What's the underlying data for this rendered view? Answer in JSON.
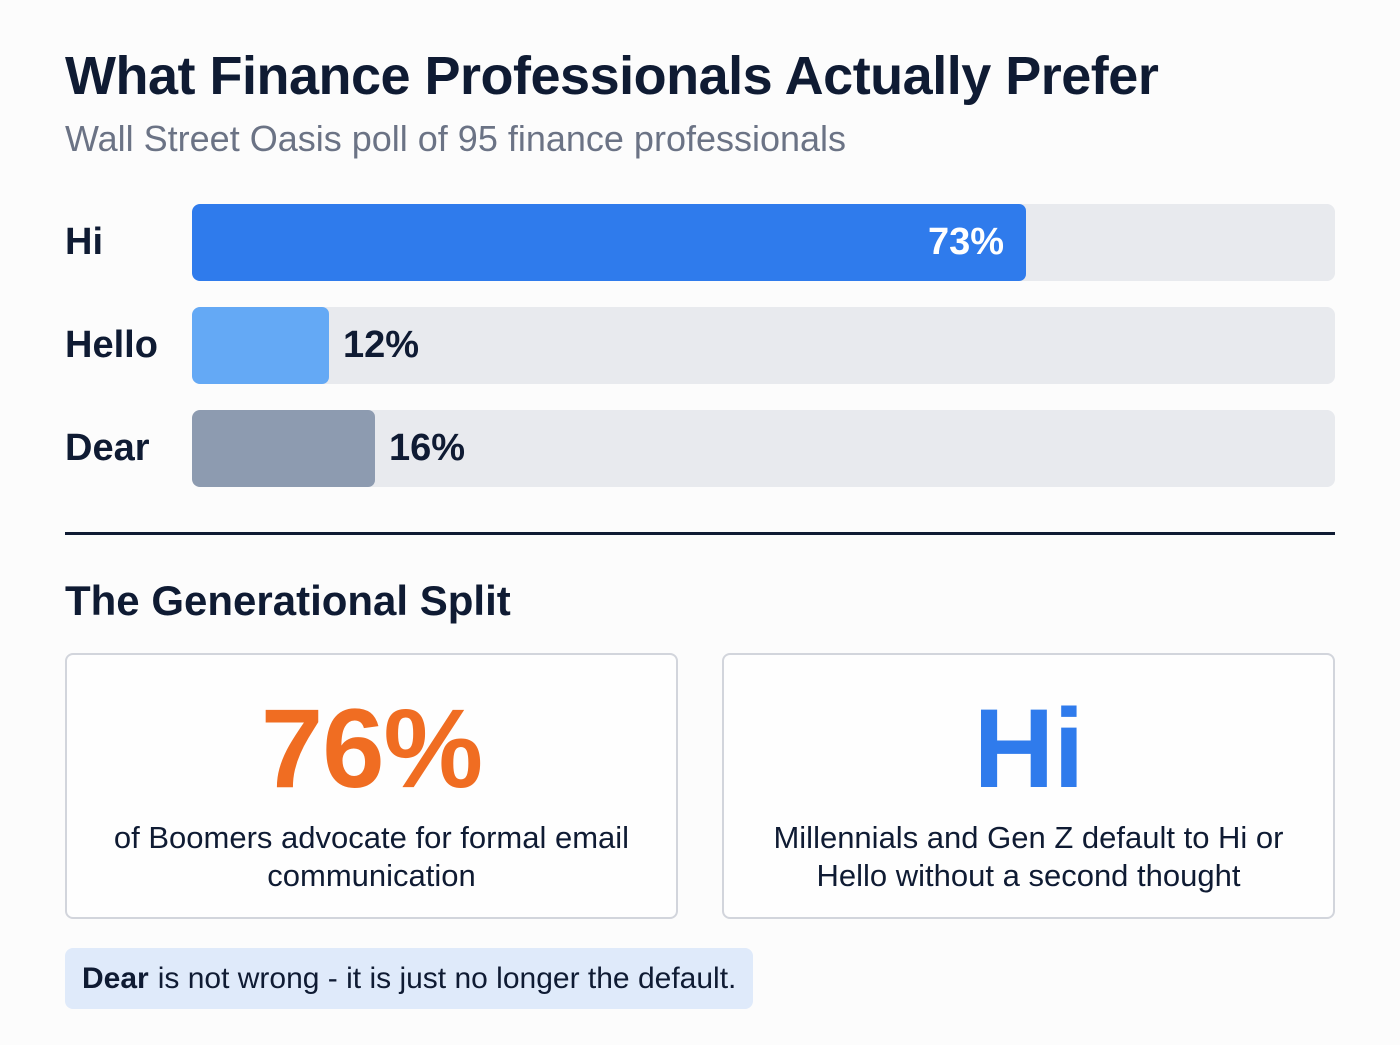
{
  "header": {
    "title": "What Finance Professionals Actually Prefer",
    "subtitle": "Wall Street Oasis poll of 95 finance professionals"
  },
  "chart_data": {
    "type": "bar",
    "orientation": "horizontal",
    "title": "What Finance Professionals Actually Prefer",
    "subtitle": "Wall Street Oasis poll of 95 finance professionals",
    "categories": [
      "Hi",
      "Hello",
      "Dear"
    ],
    "values": [
      73,
      12,
      16
    ],
    "value_labels": [
      "73%",
      "12%",
      "16%"
    ],
    "unit": "%",
    "xlim": [
      0,
      100
    ],
    "colors": [
      "#2f7bec",
      "#64a9f5",
      "#8d9bb0"
    ],
    "track_color": "#e8eaee",
    "grid": false,
    "legend": "none",
    "xlabel": "",
    "ylabel": ""
  },
  "bars": [
    {
      "label": "Hi",
      "value": 73,
      "value_label": "73%",
      "color": "#2f7bec",
      "label_position": "inside"
    },
    {
      "label": "Hello",
      "value": 12,
      "value_label": "12%",
      "color": "#64a9f5",
      "label_position": "outside"
    },
    {
      "label": "Dear",
      "value": 16,
      "value_label": "16%",
      "color": "#8d9bb0",
      "label_position": "outside"
    }
  ],
  "generational": {
    "title": "The Generational Split",
    "cards": [
      {
        "big": "76%",
        "big_color": "#f06d22",
        "desc": "of Boomers advocate for formal email communication"
      },
      {
        "big": "Hi",
        "big_color": "#2f7bec",
        "desc": "Millennials and Gen Z default to Hi or Hello without a second thought"
      }
    ]
  },
  "callout": {
    "bold": "Dear",
    "text": "is not wrong - it is just no longer the default."
  }
}
